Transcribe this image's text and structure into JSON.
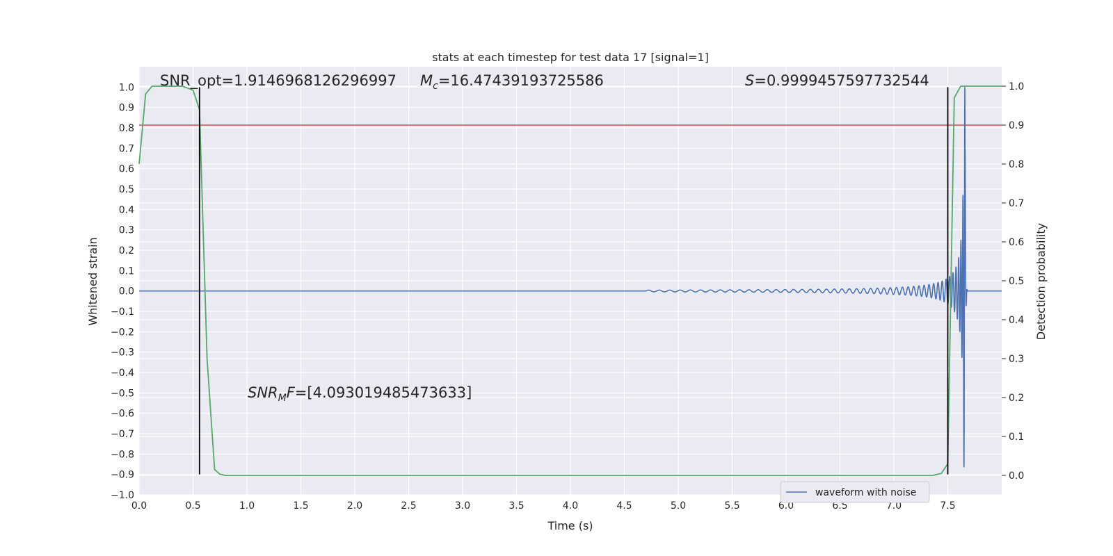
{
  "chart_data": {
    "type": "line",
    "title": "stats at each timestep for test data 17 [signal=1]",
    "xlabel": "Time (s)",
    "ylabel": "Whitened strain",
    "y2label": "Detection probability",
    "xlim": [
      0.0,
      8.0
    ],
    "ylim": [
      -1.0,
      1.1
    ],
    "y2lim": [
      -0.05,
      1.05
    ],
    "xticks": [
      "0.0",
      "0.5",
      "1.0",
      "1.5",
      "2.0",
      "2.5",
      "3.0",
      "3.5",
      "4.0",
      "4.5",
      "5.0",
      "5.5",
      "6.0",
      "6.5",
      "7.0",
      "7.5"
    ],
    "yticks": [
      "1.0",
      "0.9",
      "0.8",
      "0.7",
      "0.6",
      "0.5",
      "0.4",
      "0.3",
      "0.2",
      "0.1",
      "0.0",
      "−0.1",
      "−0.2",
      "−0.3",
      "−0.4",
      "−0.5",
      "−0.6",
      "−0.7",
      "−0.8",
      "−0.9",
      "−1.0"
    ],
    "y2ticks": [
      "1.0",
      "0.9",
      "0.8",
      "0.7",
      "0.6",
      "0.5",
      "0.4",
      "0.3",
      "0.2",
      "0.1",
      "0.0"
    ],
    "grid": true,
    "legend_position": "lower-right",
    "series": [
      {
        "name": "waveform with noise",
        "axis": "left",
        "color": "#4c72b0",
        "kind": "chirp",
        "start_time": 4.7,
        "merger_time": 7.66,
        "end_time": 7.68,
        "initial_amplitude": 0.004,
        "peak_amplitude": 1.0,
        "start_frequency": 10,
        "peak_frequency": 55
      },
      {
        "name": "",
        "axis": "right",
        "color": "#55a868",
        "x": [
          0.0,
          0.06,
          0.12,
          0.25,
          0.4,
          0.5,
          0.56,
          0.63,
          0.7,
          0.75,
          0.8,
          1.0,
          2.0,
          3.0,
          4.0,
          5.0,
          6.0,
          7.0,
          7.3,
          7.36,
          7.44,
          7.5,
          7.56,
          7.62,
          7.7,
          8.0
        ],
        "y": [
          0.8,
          0.98,
          1.0,
          1.0,
          1.0,
          0.99,
          0.94,
          0.3,
          0.015,
          0.003,
          0.0,
          0.0,
          0.0,
          0.0,
          0.0,
          0.0,
          0.0,
          0.0,
          0.0,
          0.0,
          0.005,
          0.03,
          0.97,
          1.0,
          1.0,
          1.0
        ]
      }
    ],
    "hlines": [
      {
        "axis": "right",
        "y": 0.9,
        "color": "#c44e52"
      }
    ],
    "vlines": [
      {
        "x": 0.56,
        "ymin": -0.9,
        "ymax": 1.0,
        "color": "#000000"
      },
      {
        "x": 7.5,
        "ymin": -0.9,
        "ymax": 1.0,
        "color": "#000000"
      }
    ],
    "annotations": {
      "snr_opt": "SNR_opt=1.9146968126296997",
      "mc_symbol": "M",
      "mc_sub": "c",
      "mc_value": "=16.47439193725586",
      "s_symbol": "S",
      "s_value": "=0.9999457597732544",
      "snr_mf_symbol": "SNR",
      "snr_mf_sub": "M",
      "snr_mf_f": "F",
      "snr_mf_value": "=[4.093019485473633]"
    }
  }
}
